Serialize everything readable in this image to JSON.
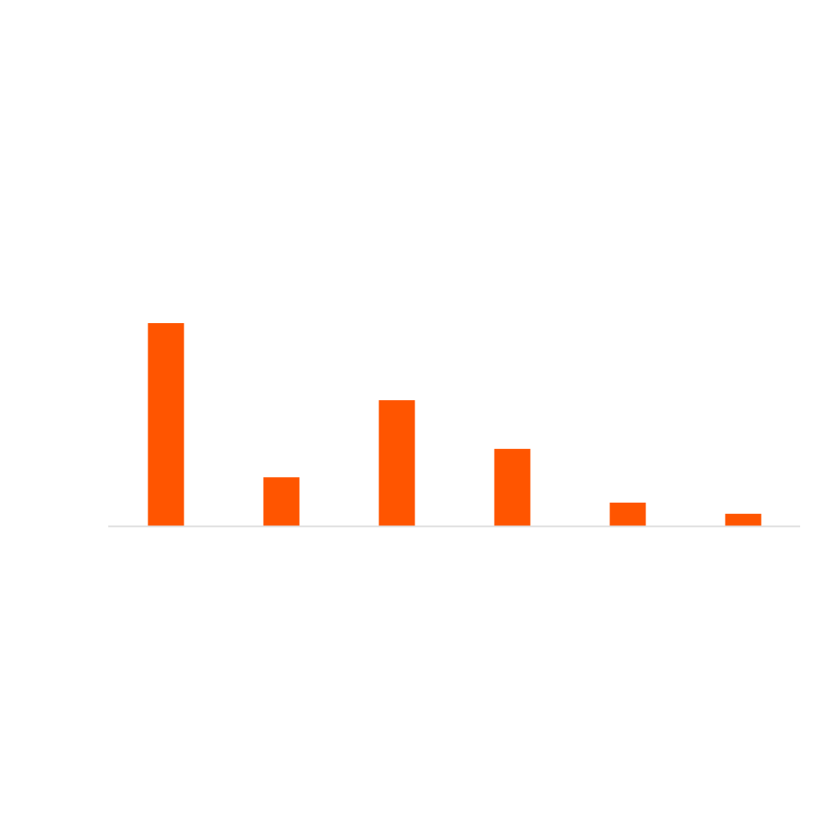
{
  "chart_data": {
    "type": "bar",
    "categories": [
      "",
      "",
      "",
      "",
      "",
      ""
    ],
    "values": [
      100,
      24,
      62,
      38,
      11.5,
      6
    ],
    "ylim": [
      0,
      100
    ],
    "grid": false,
    "legend": "none",
    "bar_color": "#FF5500",
    "axis_color": "#DDDDDD",
    "background": "#FFFFFF"
  }
}
